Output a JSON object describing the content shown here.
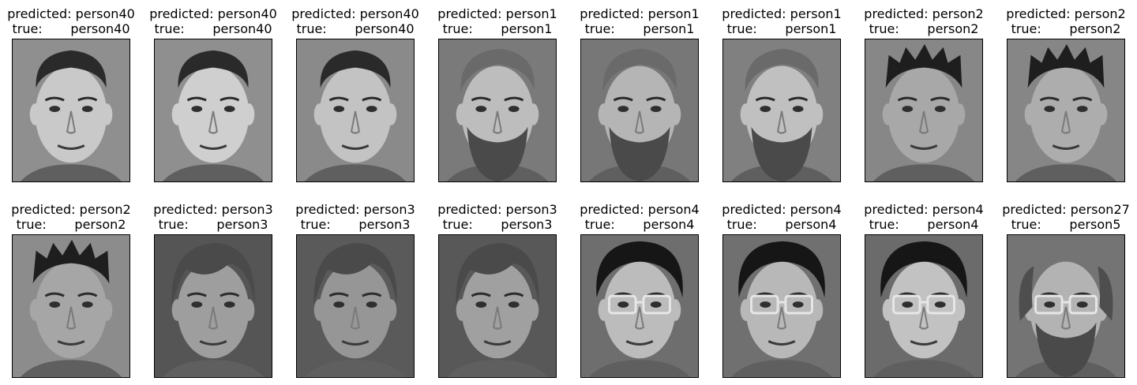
{
  "gallery": {
    "label_predicted": "predicted:",
    "label_true": "true:",
    "items": [
      {
        "predicted": "person40",
        "true": "person40",
        "icon": "face-photo-icon",
        "features": {
          "beard": false,
          "glasses": false,
          "hair": "short-dark",
          "bg": "#8f8f8f",
          "skin": "#c9c9c9"
        }
      },
      {
        "predicted": "person40",
        "true": "person40",
        "icon": "face-photo-icon",
        "features": {
          "beard": false,
          "glasses": false,
          "hair": "short-dark",
          "bg": "#8f8f8f",
          "skin": "#cfcfcf"
        }
      },
      {
        "predicted": "person40",
        "true": "person40",
        "icon": "face-photo-icon",
        "features": {
          "beard": false,
          "glasses": false,
          "hair": "short-dark",
          "bg": "#8a8a8a",
          "skin": "#c3c3c3"
        }
      },
      {
        "predicted": "person1",
        "true": "person1",
        "icon": "face-photo-icon",
        "features": {
          "beard": true,
          "glasses": false,
          "hair": "short-light",
          "bg": "#7a7a7a",
          "skin": "#bdbdbd"
        }
      },
      {
        "predicted": "person1",
        "true": "person1",
        "icon": "face-photo-icon",
        "features": {
          "beard": true,
          "glasses": false,
          "hair": "short-light",
          "bg": "#777777",
          "skin": "#b5b5b5"
        }
      },
      {
        "predicted": "person1",
        "true": "person1",
        "icon": "face-photo-icon",
        "features": {
          "beard": true,
          "glasses": false,
          "hair": "short-light",
          "bg": "#808080",
          "skin": "#c0c0c0"
        }
      },
      {
        "predicted": "person2",
        "true": "person2",
        "icon": "face-photo-icon",
        "features": {
          "beard": false,
          "glasses": false,
          "hair": "spiky-dark",
          "bg": "#878787",
          "skin": "#a8a8a8"
        }
      },
      {
        "predicted": "person2",
        "true": "person2",
        "icon": "face-photo-icon",
        "features": {
          "beard": false,
          "glasses": false,
          "hair": "spiky-dark",
          "bg": "#868686",
          "skin": "#adadad"
        }
      },
      {
        "predicted": "person2",
        "true": "person2",
        "icon": "face-photo-icon",
        "features": {
          "beard": false,
          "glasses": false,
          "hair": "spiky-dark",
          "bg": "#8c8c8c",
          "skin": "#a6a6a6"
        }
      },
      {
        "predicted": "person3",
        "true": "person3",
        "icon": "face-photo-icon",
        "features": {
          "beard": false,
          "glasses": false,
          "hair": "parted-medium",
          "bg": "#555555",
          "skin": "#9e9e9e"
        }
      },
      {
        "predicted": "person3",
        "true": "person3",
        "icon": "face-photo-icon",
        "features": {
          "beard": false,
          "glasses": false,
          "hair": "parted-medium",
          "bg": "#5a5a5a",
          "skin": "#969696"
        }
      },
      {
        "predicted": "person3",
        "true": "person3",
        "icon": "face-photo-icon",
        "features": {
          "beard": false,
          "glasses": false,
          "hair": "parted-medium",
          "bg": "#585858",
          "skin": "#a0a0a0"
        }
      },
      {
        "predicted": "person4",
        "true": "person4",
        "icon": "face-photo-icon",
        "features": {
          "beard": false,
          "glasses": true,
          "hair": "full-dark",
          "bg": "#6e6e6e",
          "skin": "#bcbcbc"
        }
      },
      {
        "predicted": "person4",
        "true": "person4",
        "icon": "face-photo-icon",
        "features": {
          "beard": false,
          "glasses": true,
          "hair": "full-dark",
          "bg": "#707070",
          "skin": "#b8b8b8"
        }
      },
      {
        "predicted": "person4",
        "true": "person4",
        "icon": "face-photo-icon",
        "features": {
          "beard": false,
          "glasses": true,
          "hair": "full-dark",
          "bg": "#6b6b6b",
          "skin": "#c2c2c2"
        }
      },
      {
        "predicted": "person27",
        "true": "person5",
        "icon": "face-photo-icon",
        "features": {
          "beard": true,
          "glasses": true,
          "hair": "balding-curly",
          "bg": "#747474",
          "skin": "#b3b3b3"
        }
      }
    ]
  }
}
